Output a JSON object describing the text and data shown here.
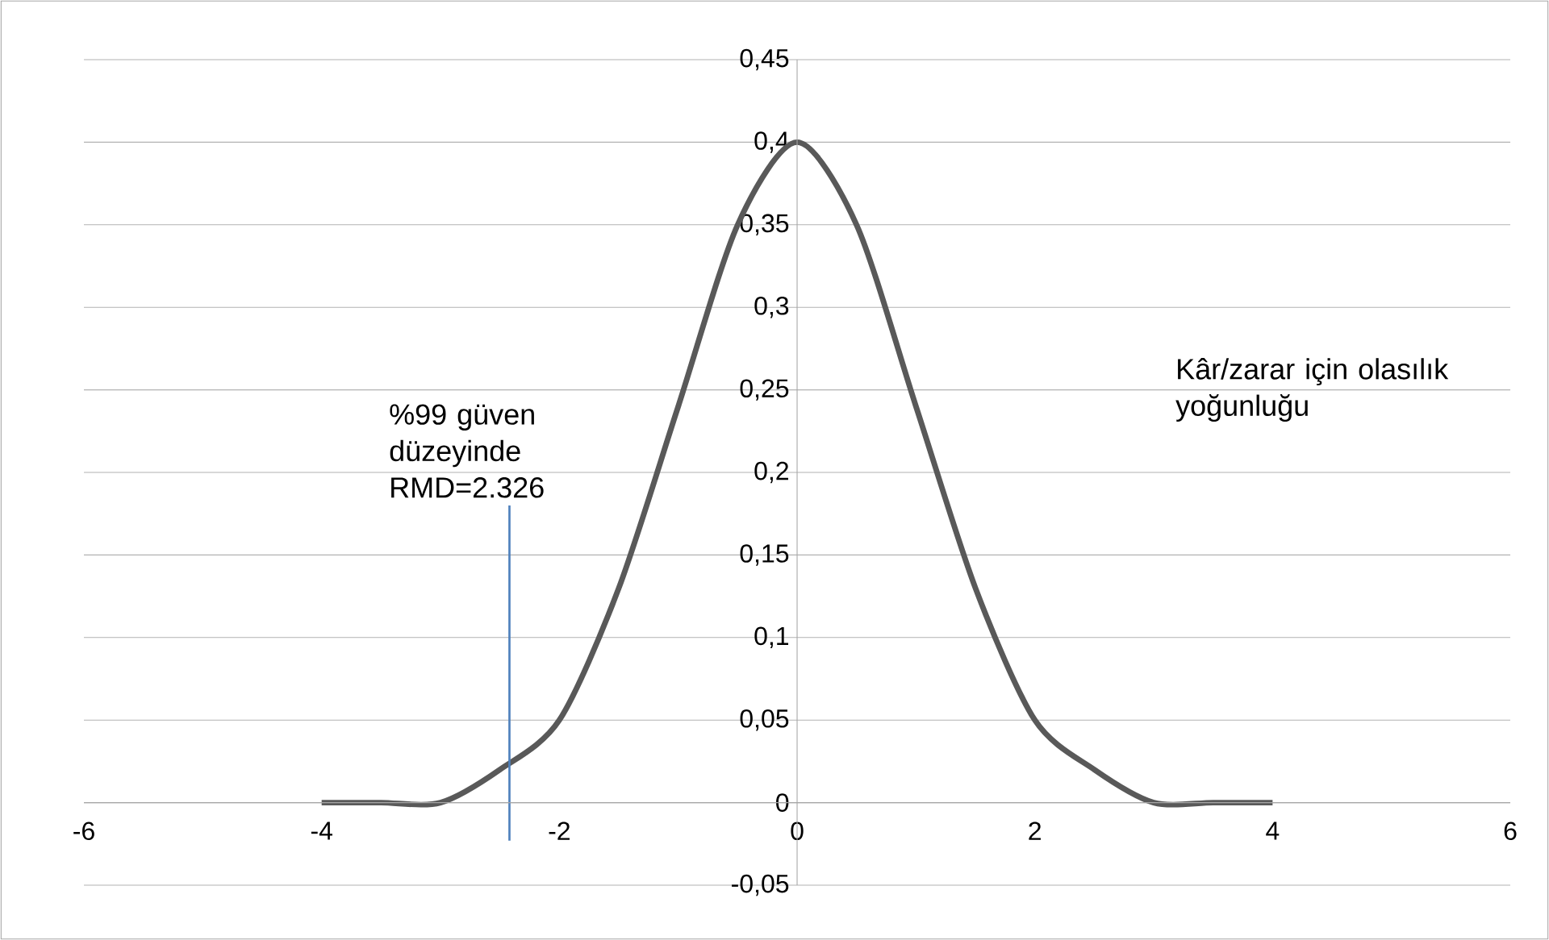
{
  "chart_data": {
    "type": "line",
    "x": [
      -4,
      -3.5,
      -3,
      -2.5,
      -2,
      -1.5,
      -1,
      -0.5,
      0,
      0.5,
      1,
      1.5,
      2,
      2.5,
      3,
      3.5,
      4
    ],
    "series": [
      {
        "name": "Kâr/zarar için olasılık yoğunluğu",
        "color": "#595959",
        "values": [
          0.0,
          0.0,
          0.0,
          0.02,
          0.05,
          0.13,
          0.24,
          0.35,
          0.4,
          0.35,
          0.24,
          0.13,
          0.05,
          0.02,
          0.0,
          0.0,
          0.0
        ]
      },
      {
        "type": "line",
        "color": "#4f81bd",
        "x": [
          -2.42,
          -2.42
        ],
        "values": [
          0.18,
          -0.023
        ]
      }
    ],
    "annotations": [
      {
        "text": "%99 güven düzeyinde RMD=2.326",
        "x": -2.42,
        "y": 0.18
      }
    ],
    "xlim": [
      -6,
      6
    ],
    "xticks": [
      -6,
      -4,
      -2,
      0,
      2,
      4,
      6
    ],
    "ylim": [
      -0.05,
      0.45
    ],
    "yticks": [
      {
        "value": -0.05,
        "label": "-0,05"
      },
      {
        "value": 0,
        "label": "0"
      },
      {
        "value": 0.05,
        "label": "0,05"
      },
      {
        "value": 0.1,
        "label": "0,1"
      },
      {
        "value": 0.15,
        "label": "0,15"
      },
      {
        "value": 0.2,
        "label": "0,2"
      },
      {
        "value": 0.25,
        "label": "0,25"
      },
      {
        "value": 0.3,
        "label": "0,3"
      },
      {
        "value": 0.35,
        "label": "0,35"
      },
      {
        "value": 0.4,
        "label": "0,4"
      },
      {
        "value": 0.45,
        "label": "0,45"
      }
    ],
    "grid": "y",
    "marker": "none",
    "line_style": "solid"
  }
}
